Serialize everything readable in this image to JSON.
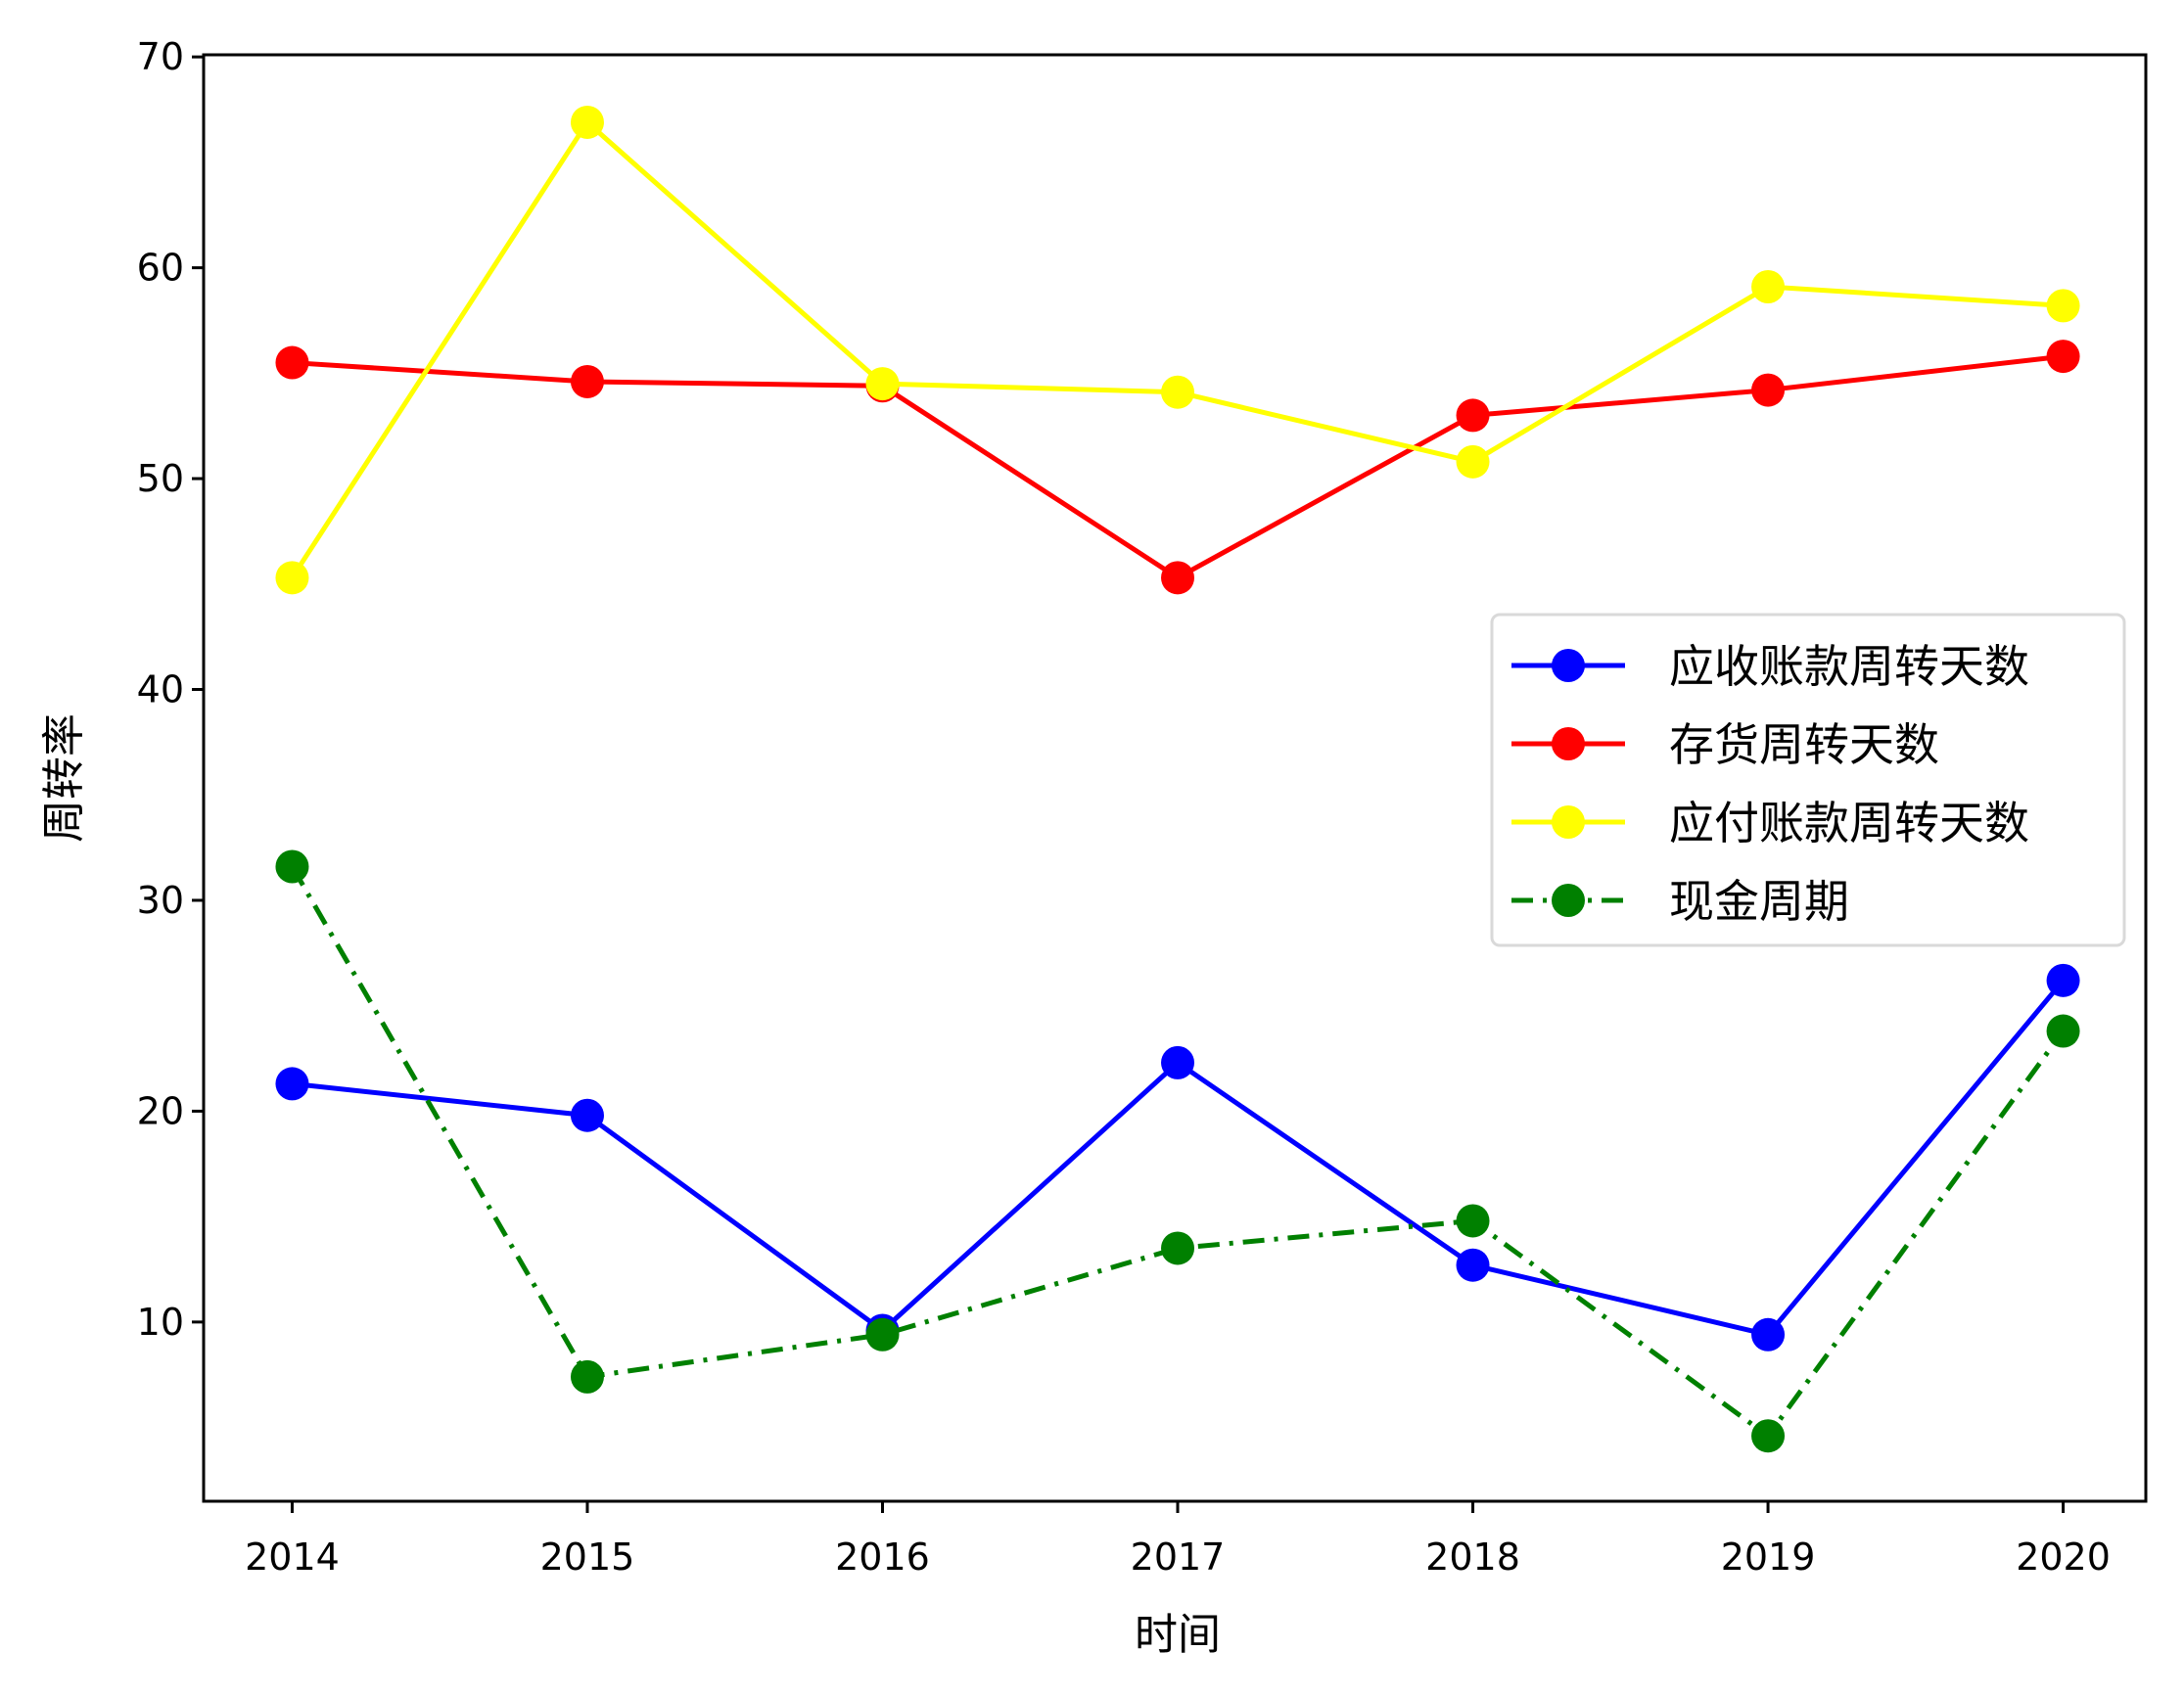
{
  "chart_data": {
    "type": "line",
    "title": "",
    "xlabel": "时间",
    "ylabel": "周转率",
    "categories": [
      "2014",
      "2015",
      "2016",
      "2017",
      "2018",
      "2019",
      "2020"
    ],
    "x": [
      2014,
      2015,
      2016,
      2017,
      2018,
      2019,
      2020
    ],
    "xlim": [
      2013.7,
      2020.28
    ],
    "ylim": [
      1.5,
      70.1
    ],
    "yticks": [
      10,
      20,
      30,
      40,
      50,
      60,
      70
    ],
    "grid": false,
    "legend_position": "center right",
    "series": [
      {
        "name": "应收账款周转天数",
        "color": "#0000ff",
        "linestyle": "solid",
        "marker": "circle",
        "values": [
          21.3,
          19.8,
          9.6,
          22.3,
          12.7,
          9.4,
          26.2
        ]
      },
      {
        "name": "存货周转天数",
        "color": "#ff0000",
        "linestyle": "solid",
        "marker": "circle",
        "values": [
          55.5,
          54.6,
          54.4,
          45.3,
          53.0,
          54.2,
          55.8
        ]
      },
      {
        "name": "应付账款周转天数",
        "color": "#ffff00",
        "linestyle": "solid",
        "marker": "circle",
        "values": [
          45.3,
          66.9,
          54.5,
          54.1,
          50.8,
          59.1,
          58.2
        ]
      },
      {
        "name": "现金周期",
        "color": "#008000",
        "linestyle": "dashdot",
        "marker": "circle",
        "values": [
          31.6,
          7.4,
          9.4,
          13.5,
          14.8,
          4.6,
          23.8
        ]
      }
    ]
  }
}
